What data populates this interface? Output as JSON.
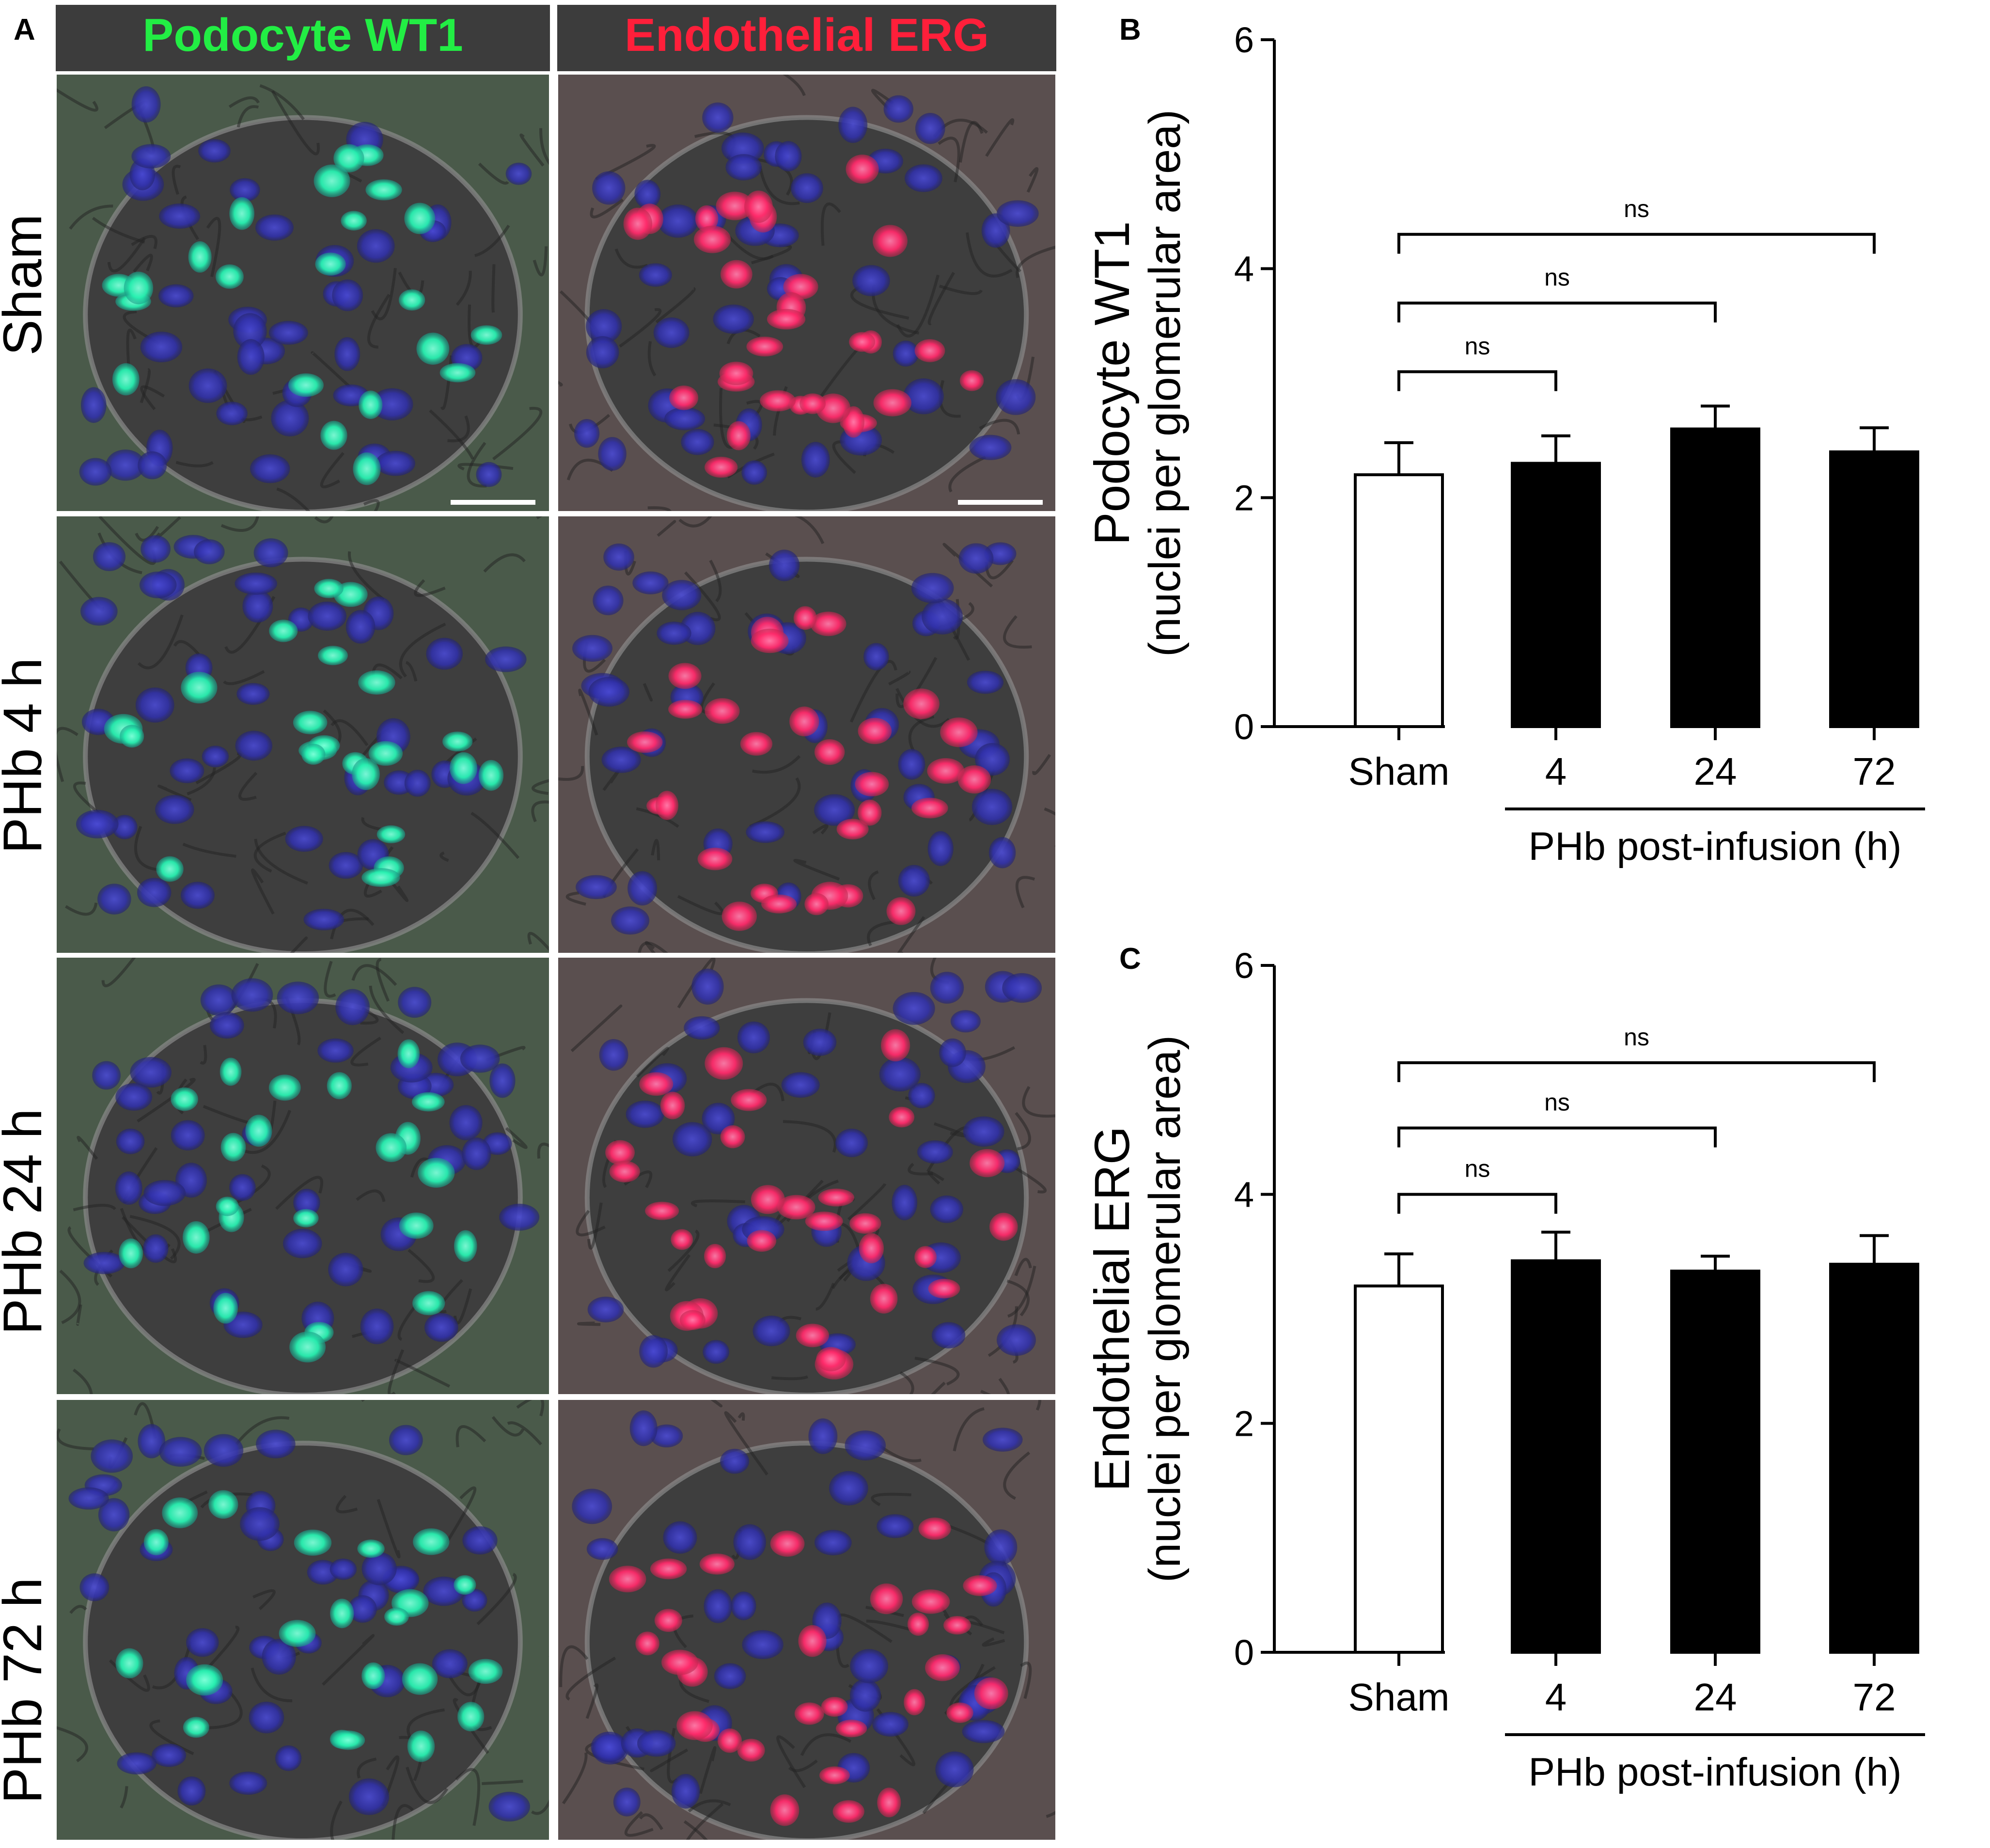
{
  "panel_a": {
    "letter": "A",
    "columns": [
      {
        "label": "Podocyte WT1",
        "color": "#22ee44"
      },
      {
        "label": "Endothelial ERG",
        "color": "#ff1f3a"
      }
    ],
    "rows": [
      "Sham",
      "PHb 4 h",
      "PHb 24 h",
      "PHb 72 h"
    ],
    "nuclei_color": "#3636b8",
    "podocyte_color": "#27f0b0",
    "endothelial_color": "#ff2a6a"
  },
  "chart_data": [
    {
      "panel": "B",
      "type": "bar",
      "categories": [
        "Sham",
        "4",
        "24",
        "72"
      ],
      "values": [
        2.2,
        2.3,
        2.6,
        2.4
      ],
      "errors": [
        0.28,
        0.24,
        0.2,
        0.21
      ],
      "bar_fills": [
        "#ffffff",
        "#000000",
        "#000000",
        "#000000"
      ],
      "ylabel": "Podocyte WT1",
      "ylabel2": "(nuclei per glomerular area)",
      "xgroup_label": "PHb post-infusion (h)",
      "ylim": [
        0,
        6
      ],
      "yticks": [
        0,
        2,
        4,
        6
      ],
      "grid": false,
      "comparisons": [
        {
          "from": "Sham",
          "to": "4",
          "label": "ns",
          "y": 3.1
        },
        {
          "from": "Sham",
          "to": "24",
          "label": "ns",
          "y": 3.7
        },
        {
          "from": "Sham",
          "to": "72",
          "label": "ns",
          "y": 4.3
        }
      ]
    },
    {
      "panel": "C",
      "type": "bar",
      "categories": [
        "Sham",
        "4",
        "24",
        "72"
      ],
      "values": [
        3.2,
        3.42,
        3.33,
        3.39
      ],
      "errors": [
        0.28,
        0.25,
        0.13,
        0.25
      ],
      "bar_fills": [
        "#ffffff",
        "#000000",
        "#000000",
        "#000000"
      ],
      "ylabel": "Endothelial ERG",
      "ylabel2": "(nuclei per glomerular area)",
      "xgroup_label": "PHb post-infusion (h)",
      "ylim": [
        0,
        6
      ],
      "yticks": [
        0,
        2,
        4,
        6
      ],
      "grid": false,
      "comparisons": [
        {
          "from": "Sham",
          "to": "4",
          "label": "ns",
          "y": 4.0
        },
        {
          "from": "Sham",
          "to": "24",
          "label": "ns",
          "y": 4.58
        },
        {
          "from": "Sham",
          "to": "72",
          "label": "ns",
          "y": 5.15
        }
      ]
    }
  ]
}
